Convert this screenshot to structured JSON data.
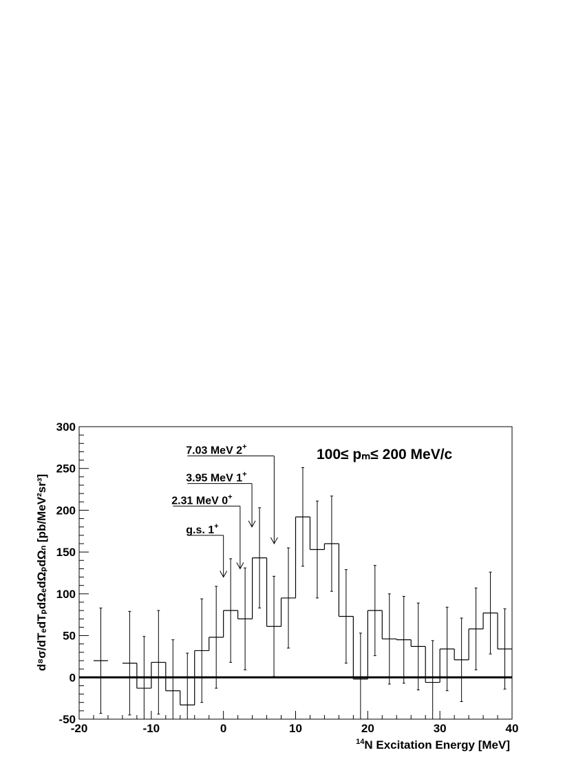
{
  "chart_data": {
    "type": "histogram",
    "xlabel_sup": "14",
    "xlabel": "N Excitation Energy [MeV]",
    "ylabel": "d⁸σ/dTₑdTₚdΩₑdΩₚdΩₙ [pb/MeV²sr³]",
    "xlim": [
      -20,
      40
    ],
    "ylim": [
      -50,
      300
    ],
    "xticks": [
      -20,
      -10,
      0,
      10,
      20,
      30,
      40
    ],
    "yticks": [
      -50,
      0,
      50,
      100,
      150,
      200,
      250,
      300
    ],
    "range_label": "100≤ pₘ≤ 200 MeV/c",
    "bins": [
      {
        "x_low": -18,
        "x_high": -16,
        "y": 20,
        "err": 63
      },
      {
        "x_low": -14,
        "x_high": -12,
        "y": 17,
        "err": 62
      },
      {
        "x_low": -12,
        "x_high": -10,
        "y": -13,
        "err": 62
      },
      {
        "x_low": -10,
        "x_high": -8,
        "y": 18,
        "err": 62
      },
      {
        "x_low": -8,
        "x_high": -6,
        "y": -16,
        "err": 61
      },
      {
        "x_low": -6,
        "x_high": -4,
        "y": -33,
        "err": 62
      },
      {
        "x_low": -4,
        "x_high": -2,
        "y": 32,
        "err": 62
      },
      {
        "x_low": -2,
        "x_high": 0,
        "y": 48,
        "err": 61
      },
      {
        "x_low": 0,
        "x_high": 2,
        "y": 80,
        "err": 62
      },
      {
        "x_low": 2,
        "x_high": 4,
        "y": 70,
        "err": 61
      },
      {
        "x_low": 4,
        "x_high": 6,
        "y": 143,
        "err": 60
      },
      {
        "x_low": 6,
        "x_high": 8,
        "y": 61,
        "err": 60
      },
      {
        "x_low": 8,
        "x_high": 10,
        "y": 95,
        "err": 60
      },
      {
        "x_low": 10,
        "x_high": 12,
        "y": 192,
        "err": 59
      },
      {
        "x_low": 12,
        "x_high": 14,
        "y": 153,
        "err": 58
      },
      {
        "x_low": 14,
        "x_high": 16,
        "y": 160,
        "err": 57
      },
      {
        "x_low": 16,
        "x_high": 18,
        "y": 73,
        "err": 56
      },
      {
        "x_low": 18,
        "x_high": 20,
        "y": -2,
        "err": 55
      },
      {
        "x_low": 20,
        "x_high": 22,
        "y": 80,
        "err": 54
      },
      {
        "x_low": 22,
        "x_high": 24,
        "y": 46,
        "err": 54
      },
      {
        "x_low": 24,
        "x_high": 26,
        "y": 45,
        "err": 52
      },
      {
        "x_low": 26,
        "x_high": 28,
        "y": 37,
        "err": 52
      },
      {
        "x_low": 28,
        "x_high": 30,
        "y": -6,
        "err": 50
      },
      {
        "x_low": 30,
        "x_high": 32,
        "y": 34,
        "err": 50
      },
      {
        "x_low": 32,
        "x_high": 34,
        "y": 21,
        "err": 50
      },
      {
        "x_low": 34,
        "x_high": 36,
        "y": 58,
        "err": 49
      },
      {
        "x_low": 36,
        "x_high": 38,
        "y": 77,
        "err": 49
      },
      {
        "x_low": 38,
        "x_high": 40,
        "y": 34,
        "err": 48
      }
    ],
    "annotations": [
      {
        "label": "7.03 MeV 2",
        "sup": "+",
        "x": 7.03,
        "line_y": 265,
        "tip_y": 160,
        "label_x_start": -5
      },
      {
        "label": "3.95 MeV 1",
        "sup": "+",
        "x": 3.95,
        "line_y": 232,
        "tip_y": 180,
        "label_x_start": -5
      },
      {
        "label": "2.31 MeV 0",
        "sup": "+",
        "x": 2.31,
        "line_y": 205,
        "tip_y": 130,
        "label_x_start": -7
      },
      {
        "label": "g.s. 1",
        "sup": "+",
        "x": 0,
        "line_y": 170,
        "tip_y": 120,
        "label_x_start": -5
      }
    ]
  }
}
